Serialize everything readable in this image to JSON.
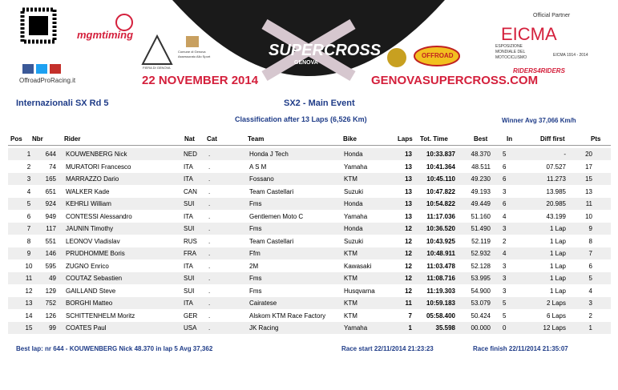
{
  "header": {
    "logos": {
      "mgm": "mgmtiming",
      "offroadpro": "OffroadProRacing.it",
      "fiera": "FIERA DI GENOVA",
      "comune": "Comune di Genova",
      "assessorato": "Assessorato Allo Sport",
      "sx": "SUPERCROSS",
      "genova": "GENOVA",
      "offroad": "OFFROAD",
      "partner": "Official Partner",
      "eicma": "EICMA",
      "eicma_sub": "ESPOSIZIONE MONDIALE DEL MOTOCICLISMO",
      "eicma_years": "EICMA 1914 - 2014",
      "riders": "RIDERS4RIDERS"
    },
    "date": "22 NOVEMBER 2014",
    "site": "GENOVASUPERCROSS.COM"
  },
  "event": {
    "title": "Internazionali SX Rd 5",
    "race": "SX2 - Main Event",
    "classification": "Classification after 13 Laps (6,526 Km)",
    "winner_avg": "Winner Avg 37,066 Km/h"
  },
  "table": {
    "columns": [
      "Pos",
      "Nbr",
      "Rider",
      "Nat",
      "Cat",
      "Team",
      "Bike",
      "Laps",
      "Tot. Time",
      "Best",
      "In",
      "Diff first",
      "Pts"
    ],
    "rows": [
      [
        "1",
        "644",
        "KOUWENBERG Nick",
        "NED",
        ".",
        "Honda J Tech",
        "Honda",
        "13",
        "10:33.837",
        "48.370",
        "5",
        "-",
        "20"
      ],
      [
        "2",
        "74",
        "MURATORI Francesco",
        "ITA",
        ".",
        "A S M",
        "Yamaha",
        "13",
        "10:41.364",
        "48.511",
        "6",
        "07.527",
        "17"
      ],
      [
        "3",
        "165",
        "MARRAZZO Dario",
        "ITA",
        ".",
        "Fossano",
        "KTM",
        "13",
        "10:45.110",
        "49.230",
        "6",
        "11.273",
        "15"
      ],
      [
        "4",
        "651",
        "WALKER Kade",
        "CAN",
        ".",
        "Team Castellari",
        "Suzuki",
        "13",
        "10:47.822",
        "49.193",
        "3",
        "13.985",
        "13"
      ],
      [
        "5",
        "924",
        "KEHRLI William",
        "SUI",
        ".",
        "Fms",
        "Honda",
        "13",
        "10:54.822",
        "49.449",
        "6",
        "20.985",
        "11"
      ],
      [
        "6",
        "949",
        "CONTESSI Alessandro",
        "ITA",
        ".",
        "Gentlemen Moto C",
        "Yamaha",
        "13",
        "11:17.036",
        "51.160",
        "4",
        "43.199",
        "10"
      ],
      [
        "7",
        "117",
        "JAUNIN Timothy",
        "SUI",
        ".",
        "Fms",
        "Honda",
        "12",
        "10:36.520",
        "51.490",
        "3",
        "1 Lap",
        "9"
      ],
      [
        "8",
        "551",
        "LEONOV Vladislav",
        "RUS",
        ".",
        "Team Castellari",
        "Suzuki",
        "12",
        "10:43.925",
        "52.119",
        "2",
        "1 Lap",
        "8"
      ],
      [
        "9",
        "146",
        "PRUDHOMME Boris",
        "FRA",
        ".",
        "Ffm",
        "KTM",
        "12",
        "10:48.911",
        "52.932",
        "4",
        "1 Lap",
        "7"
      ],
      [
        "10",
        "595",
        "ZUGNO Enrico",
        "ITA",
        ".",
        "2M",
        "Kawasaki",
        "12",
        "11:03.478",
        "52.128",
        "3",
        "1 Lap",
        "6"
      ],
      [
        "11",
        "49",
        "COUTAZ Sebastien",
        "SUI",
        ".",
        "Fms",
        "KTM",
        "12",
        "11:08.716",
        "53.995",
        "3",
        "1 Lap",
        "5"
      ],
      [
        "12",
        "129",
        "GAILLAND Steve",
        "SUI",
        ".",
        "Fms",
        "Husqvarna",
        "12",
        "11:19.303",
        "54.900",
        "3",
        "1 Lap",
        "4"
      ],
      [
        "13",
        "752",
        "BORGHI Matteo",
        "ITA",
        ".",
        "Cairatese",
        "KTM",
        "11",
        "10:59.183",
        "53.079",
        "5",
        "2 Laps",
        "3"
      ],
      [
        "14",
        "126",
        "SCHITTENHELM Moritz",
        "GER",
        ".",
        "Alskom KTM Race Factory",
        "KTM",
        "7",
        "05:58.400",
        "50.424",
        "5",
        "6 Laps",
        "2"
      ],
      [
        "15",
        "99",
        "COATES Paul",
        "USA",
        ".",
        "JK Racing",
        "Yamaha",
        "1",
        "35.598",
        "00.000",
        "0",
        "12 Laps",
        "1"
      ]
    ]
  },
  "footer": {
    "best_lap": "Best lap: nr 644 - KOUWENBERG Nick 48.370 in lap 5 Avg 37,362",
    "race_start": "Race start 22/11/2014 21:23:23",
    "race_finish": "Race finish 22/11/2014 21:35:07"
  }
}
